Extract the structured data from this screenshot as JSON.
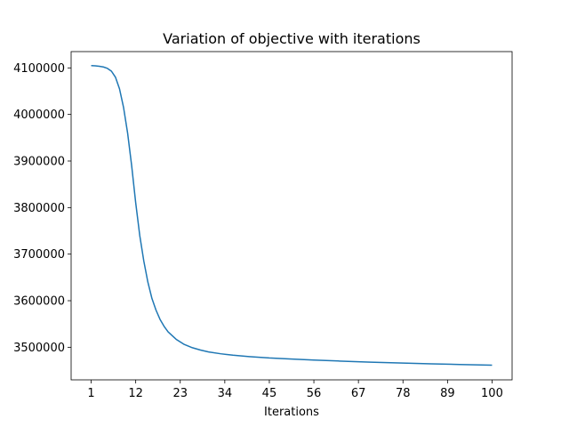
{
  "chart_data": {
    "type": "line",
    "title": "Variation of objective with iterations",
    "xlabel": "Iterations",
    "ylabel": "",
    "xlim": [
      -3.95,
      104.95
    ],
    "ylim": [
      3430000,
      4135000
    ],
    "x_ticks": [
      1,
      12,
      23,
      34,
      45,
      56,
      67,
      78,
      89,
      100
    ],
    "y_ticks": [
      3500000,
      3600000,
      3700000,
      3800000,
      3900000,
      4000000,
      4100000
    ],
    "grid": false,
    "line_color": "#1f77b4",
    "series": [
      {
        "x": [
          1,
          2,
          3,
          4,
          5,
          6,
          7,
          8,
          9,
          10,
          11,
          12,
          13,
          14,
          15,
          16,
          17,
          18,
          19,
          20,
          22,
          24,
          26,
          28,
          30,
          33,
          36,
          40,
          45,
          50,
          56,
          62,
          70,
          78,
          85,
          92,
          100
        ],
        "values": [
          4105000,
          4104500,
          4103500,
          4102000,
          4099000,
          4093000,
          4080000,
          4055000,
          4015000,
          3960000,
          3890000,
          3810000,
          3740000,
          3685000,
          3640000,
          3605000,
          3580000,
          3560000,
          3545000,
          3533000,
          3517000,
          3506000,
          3499000,
          3494000,
          3490000,
          3486000,
          3483000,
          3480000,
          3477000,
          3475000,
          3472500,
          3470500,
          3468000,
          3466000,
          3464500,
          3463000,
          3461500
        ]
      }
    ]
  }
}
